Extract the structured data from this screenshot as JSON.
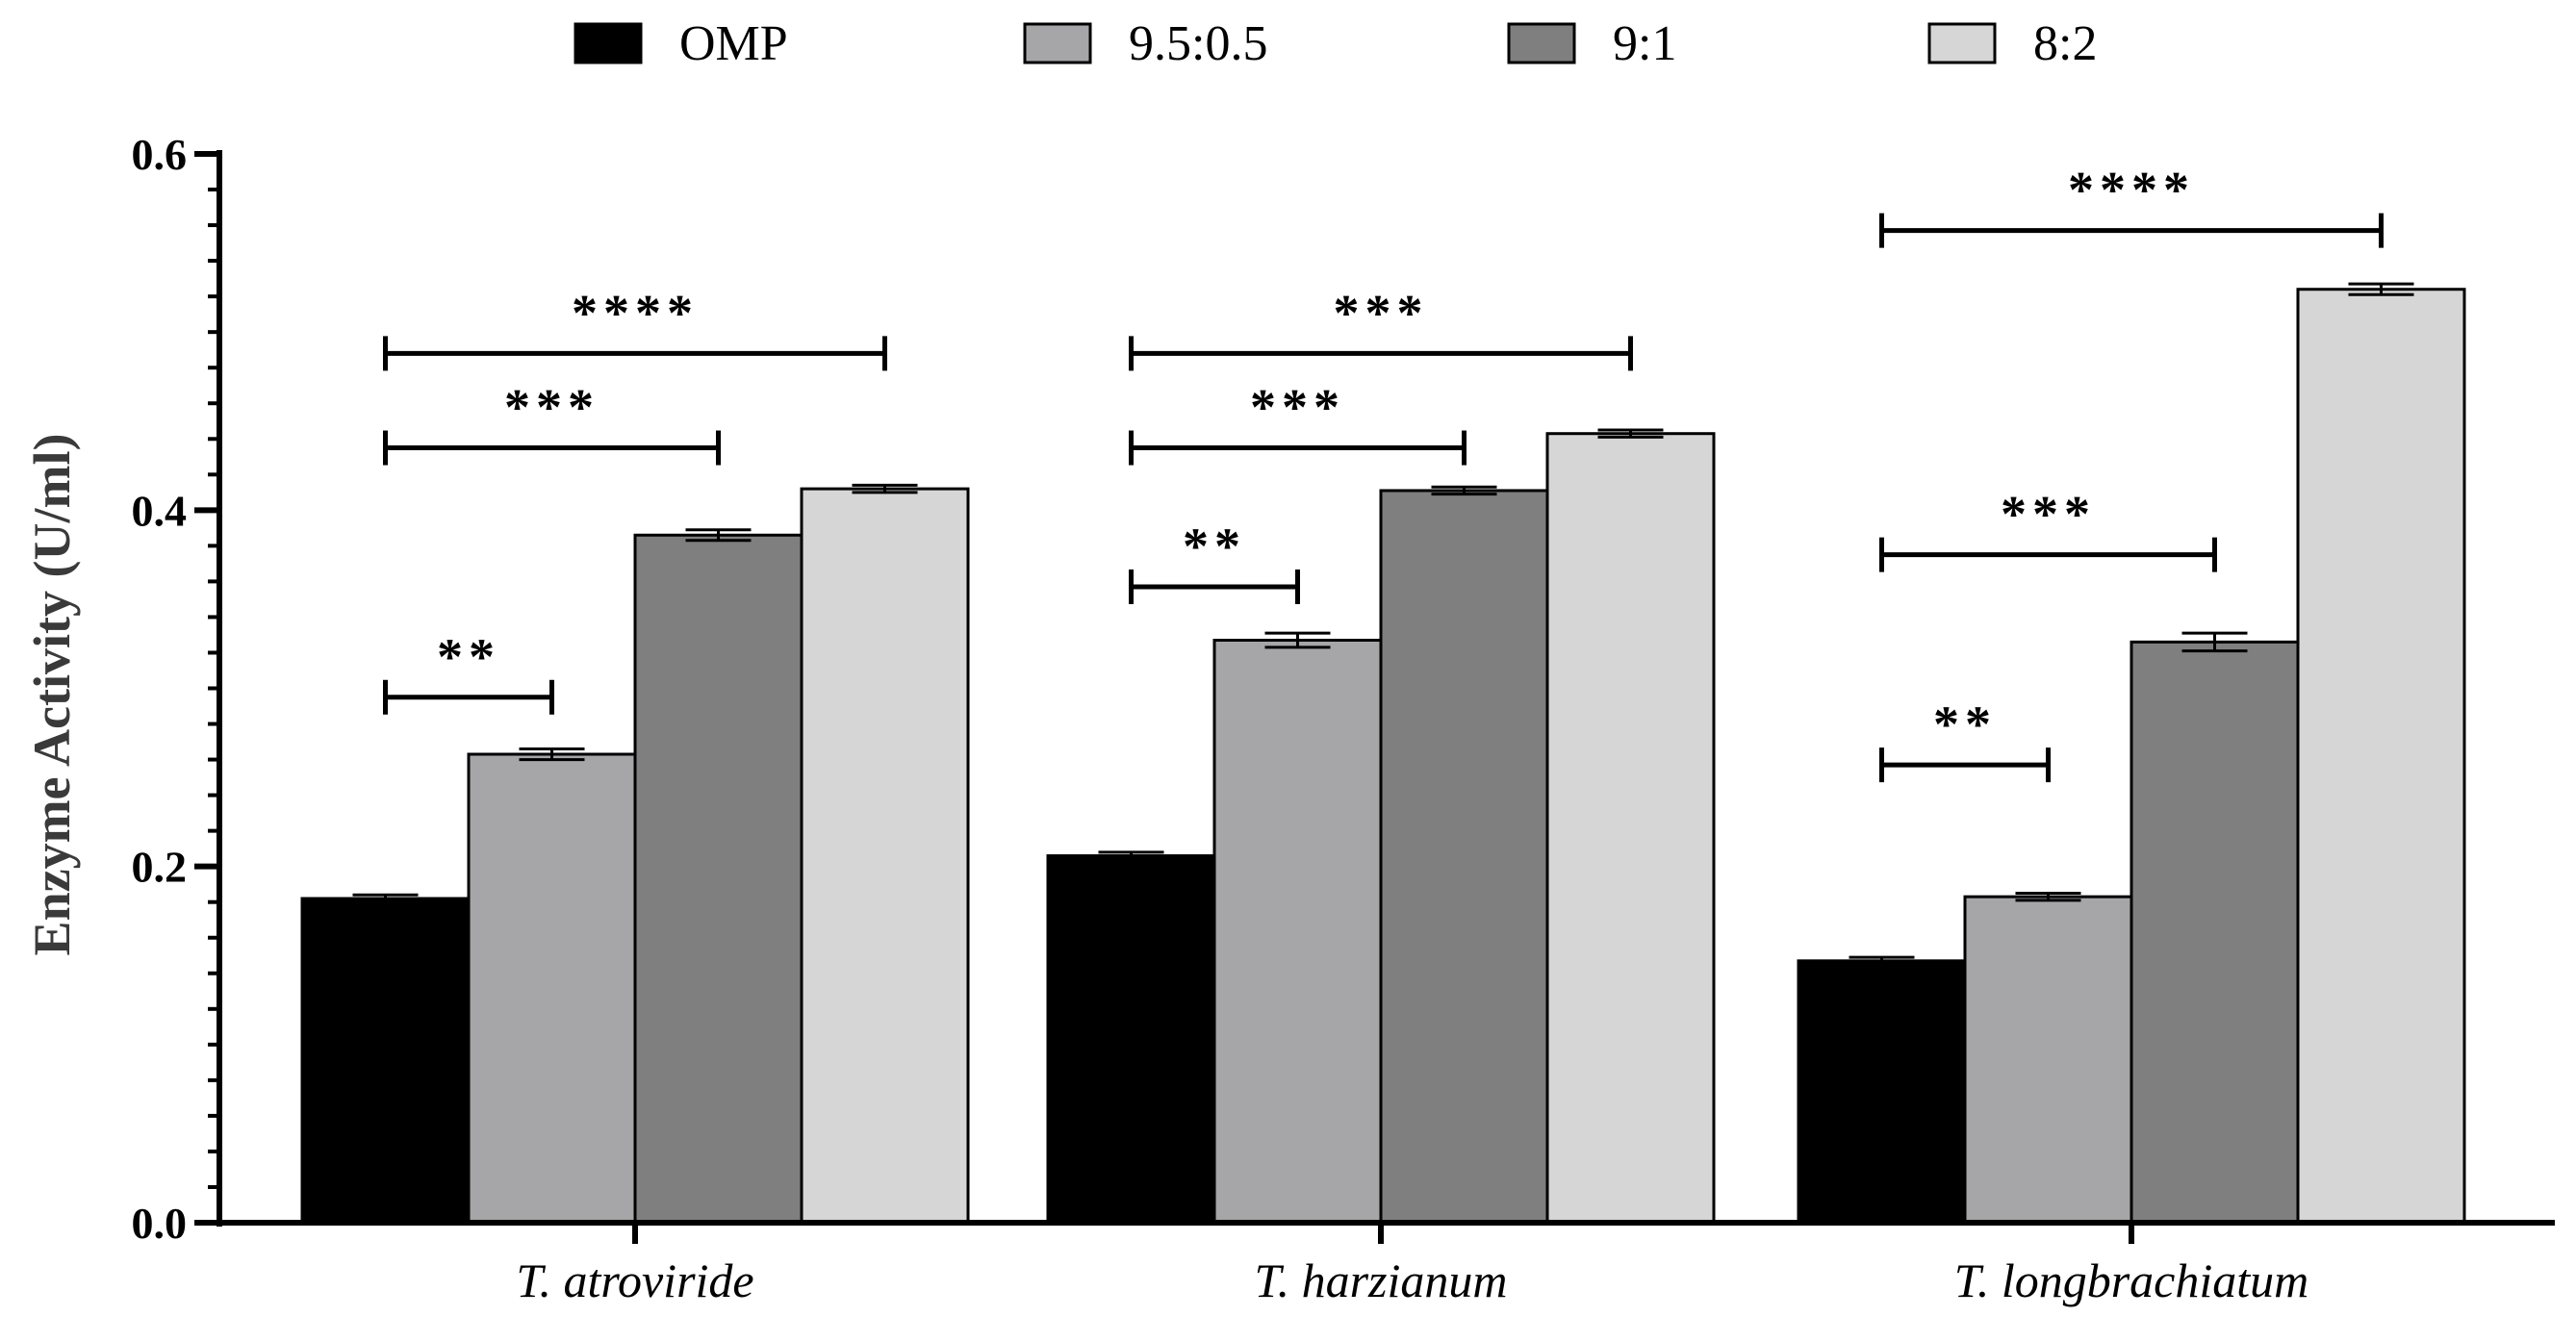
{
  "chart_data": {
    "type": "bar",
    "title": "",
    "xlabel": "",
    "ylabel": "Enzyme Activity (U/ml)",
    "ylim": [
      0,
      0.6
    ],
    "yticks": [
      {
        "value": 0.0,
        "label": "0.0"
      },
      {
        "value": 0.2,
        "label": "0.2"
      },
      {
        "value": 0.4,
        "label": "0.4"
      },
      {
        "value": 0.6,
        "label": "0.6"
      }
    ],
    "y_minor_step": 0.02,
    "grid": false,
    "legend": {
      "placement": "top-center",
      "orientation": "horizontal"
    },
    "categories": [
      "T. atroviride",
      "T. harzianum",
      "T. longbrachiatum"
    ],
    "series": [
      {
        "name": "OMP",
        "color": "#000000",
        "values": [
          0.182,
          0.206,
          0.147
        ],
        "errors": [
          0.002,
          0.002,
          0.002
        ]
      },
      {
        "name": "9.5:0.5",
        "color": "#a6a6a8",
        "values": [
          0.263,
          0.327,
          0.183
        ],
        "errors": [
          0.003,
          0.004,
          0.002
        ]
      },
      {
        "name": "9:1",
        "color": "#7f7f7f",
        "values": [
          0.386,
          0.411,
          0.326
        ],
        "errors": [
          0.003,
          0.002,
          0.005
        ]
      },
      {
        "name": "8:2",
        "color": "#d6d6d6",
        "values": [
          0.412,
          0.443,
          0.524
        ],
        "errors": [
          0.002,
          0.002,
          0.003
        ]
      }
    ],
    "annotations": [
      {
        "category": 0,
        "from_series": 0,
        "to_series": 1,
        "y": 0.295,
        "text": "**"
      },
      {
        "category": 0,
        "from_series": 0,
        "to_series": 2,
        "y": 0.435,
        "text": "***"
      },
      {
        "category": 0,
        "from_series": 0,
        "to_series": 3,
        "y": 0.488,
        "text": "****"
      },
      {
        "category": 1,
        "from_series": 0,
        "to_series": 1,
        "y": 0.357,
        "text": "**"
      },
      {
        "category": 1,
        "from_series": 0,
        "to_series": 2,
        "y": 0.435,
        "text": "***"
      },
      {
        "category": 1,
        "from_series": 0,
        "to_series": 3,
        "y": 0.488,
        "text": "***"
      },
      {
        "category": 2,
        "from_series": 0,
        "to_series": 1,
        "y": 0.257,
        "text": "**"
      },
      {
        "category": 2,
        "from_series": 0,
        "to_series": 2,
        "y": 0.375,
        "text": "***"
      },
      {
        "category": 2,
        "from_series": 0,
        "to_series": 3,
        "y": 0.557,
        "text": "****"
      }
    ]
  }
}
